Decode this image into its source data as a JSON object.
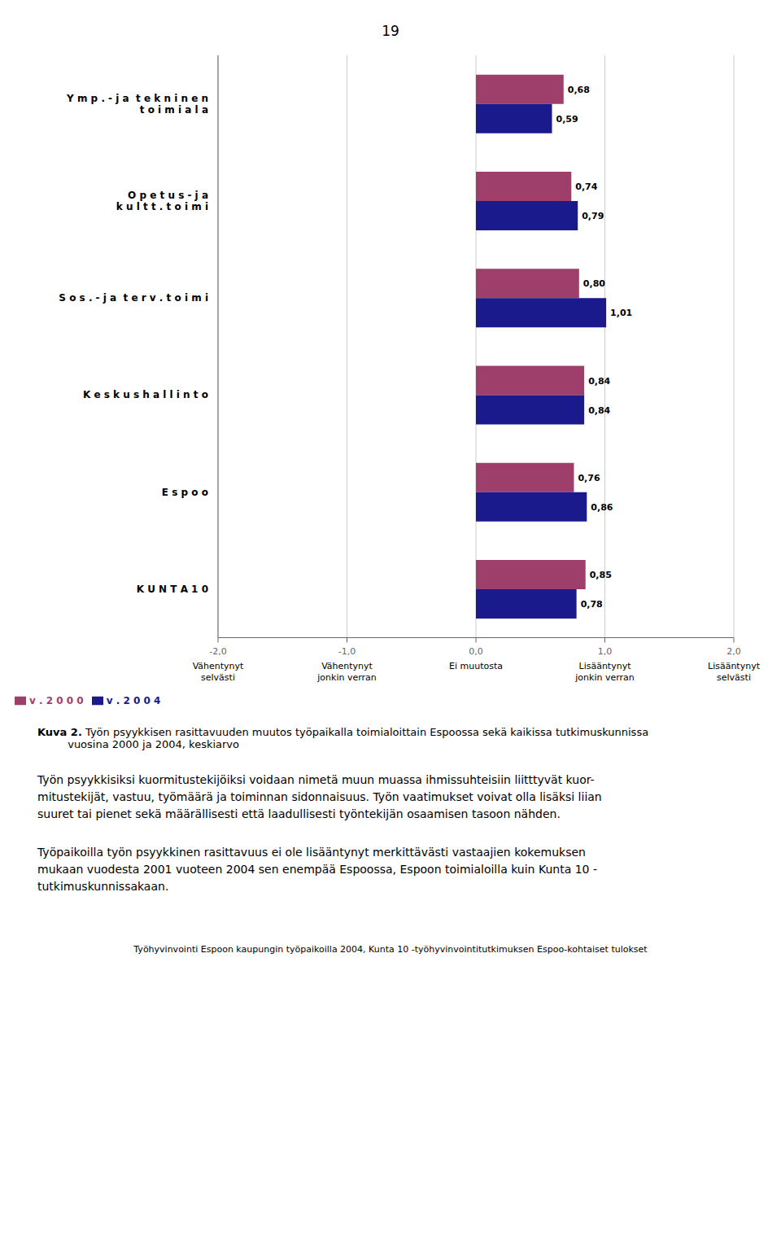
{
  "chart_data": {
    "type": "bar",
    "orientation": "horizontal",
    "title": "Kuva 2.",
    "subtitle": " Työn psyykkisen rasittavuuden muutos työpaikalla toimialoittain Espoossa sekä kaikissa tutkimuskunnissa\n         vuosina 2000 ja 2004, keskiarvo",
    "categories": [
      "K U N T A 1 0",
      "E s p o o",
      "K e s k u s h a l l i n t o",
      "S o s . - j a  t e r v . t o i m i",
      "O p e t u s - j a\nk u l t t . t o i m i",
      "Y m p . - j a  t e k n i n e n\nt o i m i a l a"
    ],
    "series": [
      {
        "name": "v . 2 0 0 0",
        "color": "#9e3f6b",
        "values": [
          0.85,
          0.76,
          0.84,
          0.8,
          0.74,
          0.68
        ],
        "value_labels": [
          "0,85",
          "0,76",
          "0,84",
          "0,80",
          "0,74",
          "0,68"
        ]
      },
      {
        "name": "v . 2 0 0 4",
        "color": "#1a1a8c",
        "values": [
          0.78,
          0.86,
          0.84,
          1.01,
          0.79,
          0.59
        ],
        "value_labels": [
          "0,78",
          "0,86",
          "0,84",
          "1,01",
          "0,79",
          "0,59"
        ]
      }
    ],
    "xlim": [
      -2.0,
      2.0
    ],
    "xticks": [
      {
        "value": -2.0,
        "label": "-2,0"
      },
      {
        "value": -1.0,
        "label": "-1,0"
      },
      {
        "value": 0.0,
        "label": "0,0"
      },
      {
        "value": 1.0,
        "label": "1,0"
      },
      {
        "value": 2.0,
        "label": "2,0"
      }
    ],
    "annotations": [
      {
        "x": -2.0,
        "text": "Vähentynyt\nselvästi"
      },
      {
        "x": -1.0,
        "text": "Vähentynyt\njonkin verran"
      },
      {
        "x": 0.0,
        "text": "Ei muutosta"
      },
      {
        "x": 1.0,
        "text": "Lisääntynyt\njonkin verran"
      },
      {
        "x": 2.0,
        "text": "Lisääntynyt\nselvästi"
      }
    ],
    "data_labels": true,
    "grid": true,
    "legend": "lower left"
  },
  "page_texts": {
    "page_number": "19",
    "body": [
      "Työn psyykkisiksi kuormitustekijöiksi voidaan nimetä muun muassa ihmissuhteisiin liitttyvät kuor-\nmitustekijät, vastuu, työmäärä ja toiminnan sidonnaisuus. Työn vaatimukset voivat olla lisäksi liian\nsuuret tai pienet sekä määrällisesti että laadullisesti työntekijän osaamisen tasoon nähden.",
      "Työpaikoilla työn psyykkinen rasittavuus ei ole lisääntynyt merkittävästi vastaajien kokemuksen\nmukaan vuodesta 2001 vuoteen 2004 sen enempää Espoossa, Espoon toimialoilla kuin Kunta 10 -\ntutkimuskunnissakaan."
    ],
    "footer": "Työhyvinvointi Espoon kaupungin työpaikoilla 2004, Kunta 10 -työhyvinvointitutkimuksen Espoo-kohtaiset tulokset"
  }
}
